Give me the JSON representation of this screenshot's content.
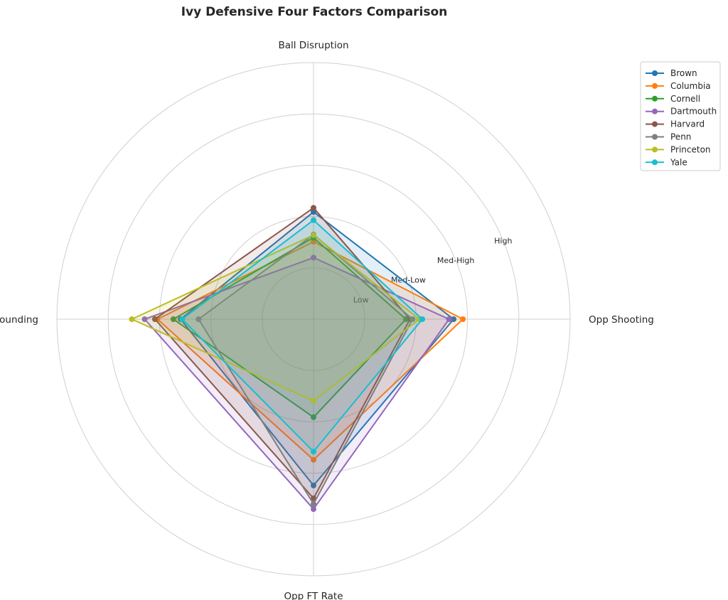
{
  "chart_data": {
    "type": "radar",
    "title": "Ivy Defensive Four Factors Comparison",
    "axes": [
      "Ball Disruption",
      "Opp Shooting",
      "Opp FT Rate",
      "Def Rebounding"
    ],
    "ring_labels": [
      "Low",
      "Med-Low",
      "Med-High",
      "High"
    ],
    "rlim": [
      0,
      5
    ],
    "legend_position": "top-right, outside plot",
    "grid": true,
    "series": [
      {
        "name": "Brown",
        "color": "#1f77b4",
        "values": [
          2.09,
          2.73,
          3.24,
          2.59
        ]
      },
      {
        "name": "Columbia",
        "color": "#ff7f0e",
        "values": [
          1.51,
          2.91,
          2.74,
          3.04
        ]
      },
      {
        "name": "Cornell",
        "color": "#2ca02c",
        "values": [
          1.59,
          1.8,
          1.91,
          2.73
        ]
      },
      {
        "name": "Dartmouth",
        "color": "#9467bd",
        "values": [
          1.2,
          2.64,
          3.7,
          3.29
        ]
      },
      {
        "name": "Harvard",
        "color": "#8c564b",
        "values": [
          2.17,
          1.88,
          3.49,
          3.09
        ]
      },
      {
        "name": "Penn",
        "color": "#7f7f7f",
        "values": [
          1.65,
          1.93,
          3.6,
          2.24
        ]
      },
      {
        "name": "Princeton",
        "color": "#bcbd22",
        "values": [
          1.64,
          2.06,
          1.59,
          3.54
        ]
      },
      {
        "name": "Yale",
        "color": "#17becf",
        "values": [
          1.93,
          2.12,
          2.58,
          2.56
        ]
      }
    ]
  }
}
